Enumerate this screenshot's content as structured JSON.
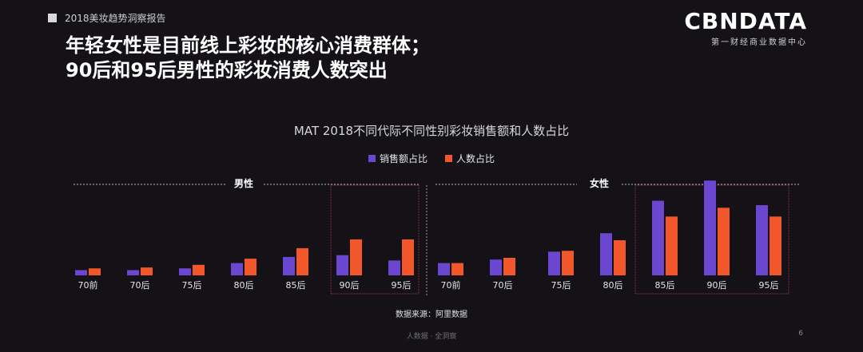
{
  "header": {
    "report_tag": "2018美妆趋势洞察报告"
  },
  "brand": {
    "logo": "CBNDATA",
    "subtitle": "第一财经商业数据中心"
  },
  "headline": {
    "line1": "年轻女性是目前线上彩妆的核心消费群体；",
    "line2": "90后和95后男性的彩妆消费人数突出"
  },
  "colors": {
    "sales": "#6b46d0",
    "people": "#f2572b",
    "background": "#141216"
  },
  "chart_data": {
    "type": "bar",
    "title": "MAT 2018不同代际不同性别彩妆销售额和人数占比",
    "legend": [
      "销售额占比",
      "人数占比"
    ],
    "groups": [
      {
        "name": "男性",
        "categories": [
          "70前",
          "70后",
          "75后",
          "80后",
          "85后",
          "90后",
          "95后"
        ],
        "series": [
          {
            "name": "销售额占比",
            "values": [
              6,
              6,
              8,
              14,
              21,
              23,
              17
            ]
          },
          {
            "name": "人数占比",
            "values": [
              8,
              9,
              12,
              19,
              31,
              41,
              41
            ]
          }
        ]
      },
      {
        "name": "女性",
        "categories": [
          "70前",
          "70后",
          "75后",
          "80后",
          "85后",
          "90后",
          "95后"
        ],
        "series": [
          {
            "name": "销售额占比",
            "values": [
              14,
              18,
              27,
              48,
              85,
              108,
              80
            ]
          },
          {
            "name": "人数占比",
            "values": [
              14,
              20,
              28,
              40,
              67,
              77,
              67
            ]
          }
        ]
      }
    ],
    "highlighted": [
      "男性 90后",
      "男性 95后",
      "女性 85后",
      "女性 90后",
      "女性 95后"
    ]
  },
  "source": "数据来源：阿里数据",
  "footer": "人数据 · 全洞察",
  "page_number": "6"
}
